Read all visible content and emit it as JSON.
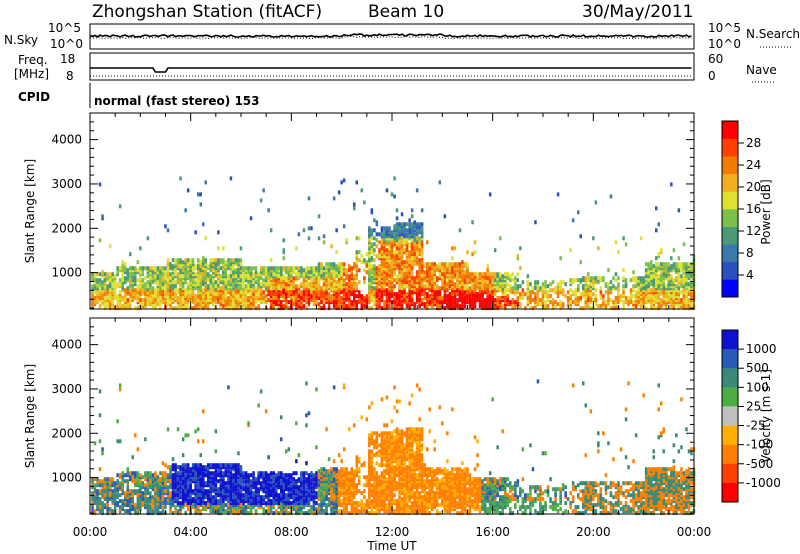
{
  "header": {
    "station": "Zhongshan Station (fitACF)",
    "beam": "Beam 10",
    "date": "30/May/2011"
  },
  "sky_panel": {
    "left_label": "N.Sky",
    "left_top_tick": "10^5",
    "left_bottom_tick": "10^0",
    "right_label": "N.Search",
    "right_top_tick": "10^5",
    "right_bottom_tick": "10^0"
  },
  "freq_panel": {
    "left_label_line1": "Freq.",
    "left_label_line2": "[MHz]",
    "left_top_tick": "18",
    "left_bottom_tick": "8",
    "right_label": "Nave",
    "right_top_tick": "60",
    "right_bottom_tick": "0"
  },
  "cpid": {
    "label": "CPID",
    "value": "normal (fast stereo) 153"
  },
  "chart_data": [
    {
      "type": "heatmap",
      "name": "power",
      "ylabel": "Slant Range [km]",
      "xlabel": "Time UT",
      "x_ticks": [
        "00:00",
        "04:00",
        "08:00",
        "12:00",
        "16:00",
        "20:00",
        "00:00"
      ],
      "x_range_hours": [
        0,
        24
      ],
      "y_ticks": [
        "1000",
        "2000",
        "3000",
        "4000"
      ],
      "y_tick_values": [
        1000,
        2000,
        3000,
        4000
      ],
      "ylim": [
        180,
        4600
      ],
      "colorbar": {
        "label": "Power [dB]",
        "ticks": [
          "28",
          "24",
          "20",
          "16",
          "12",
          "8",
          "4"
        ],
        "range": [
          0,
          32
        ],
        "colors": [
          "#0000ff",
          "#2a52be",
          "#3a7aaa",
          "#4a9a76",
          "#7ac04a",
          "#e0e030",
          "#f0b020",
          "#f07d00",
          "#ff4000",
          "#ff0000"
        ]
      }
    },
    {
      "type": "heatmap",
      "name": "velocity",
      "ylabel": "Slant Range [km]",
      "xlabel": "Time UT",
      "x_ticks": [
        "00:00",
        "04:00",
        "08:00",
        "12:00",
        "16:00",
        "20:00",
        "00:00"
      ],
      "x_range_hours": [
        0,
        24
      ],
      "y_ticks": [
        "1000",
        "2000",
        "3000",
        "4000"
      ],
      "y_tick_values": [
        1000,
        2000,
        3000,
        4000
      ],
      "ylim": [
        180,
        4600
      ],
      "colorbar": {
        "label": "Velocity [m s-1]",
        "ticks": [
          "1000",
          "500",
          "100",
          "25",
          "-25",
          "-100",
          "-500",
          "-1000"
        ],
        "colors": [
          "#1010d0",
          "#2858b8",
          "#3a8a7a",
          "#4cae42",
          "#c0c0c0",
          "#ffb000",
          "#ff8000",
          "#ff4000",
          "#ff0000"
        ]
      }
    }
  ],
  "footer": {
    "xlabel": "Time UT"
  }
}
